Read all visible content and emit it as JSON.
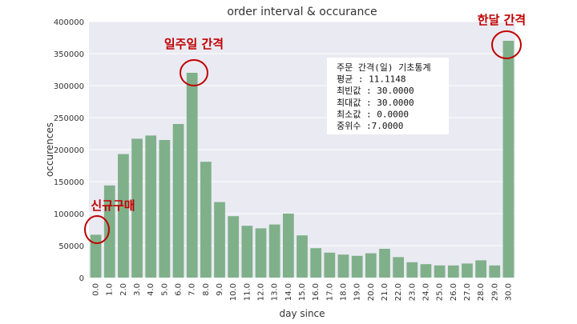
{
  "chart_data": {
    "type": "bar",
    "title": "order interval & occurance",
    "xlabel": "day since",
    "ylabel": "occurences",
    "ylim": [
      0,
      400000
    ],
    "yticks": [
      0,
      50000,
      100000,
      150000,
      200000,
      250000,
      300000,
      350000,
      400000
    ],
    "grid": true,
    "categories": [
      "0.0",
      "1.0",
      "2.0",
      "3.0",
      "4.0",
      "5.0",
      "6.0",
      "7.0",
      "8.0",
      "9.0",
      "10.0",
      "11.0",
      "12.0",
      "13.0",
      "14.0",
      "15.0",
      "16.0",
      "17.0",
      "18.0",
      "19.0",
      "20.0",
      "21.0",
      "22.0",
      "23.0",
      "24.0",
      "25.0",
      "26.0",
      "27.0",
      "28.0",
      "29.0",
      "30.0"
    ],
    "values": [
      67000,
      144000,
      193000,
      217000,
      222000,
      215000,
      240000,
      320000,
      181000,
      118000,
      96000,
      81000,
      77000,
      83000,
      100000,
      66000,
      46000,
      39000,
      36000,
      34000,
      38000,
      45000,
      32000,
      24000,
      21000,
      19000,
      19000,
      22000,
      27000,
      19000,
      370000
    ],
    "bar_color": "#7fb08a",
    "stats_box": {
      "lines": [
        "주문 간격(일) 기초통계",
        "평균 : 11.1148",
        "최빈값 : 30.0000",
        "최대값 : 30.0000",
        "최소값 : 0.0000",
        "중위수 :7.0000"
      ]
    },
    "annotations": [
      {
        "text": "신규구매",
        "category": "0.0"
      },
      {
        "text": "일주일 간격",
        "category": "7.0"
      },
      {
        "text": "한달 간격",
        "category": "30.0"
      }
    ],
    "annotation_color": "#c00000"
  }
}
